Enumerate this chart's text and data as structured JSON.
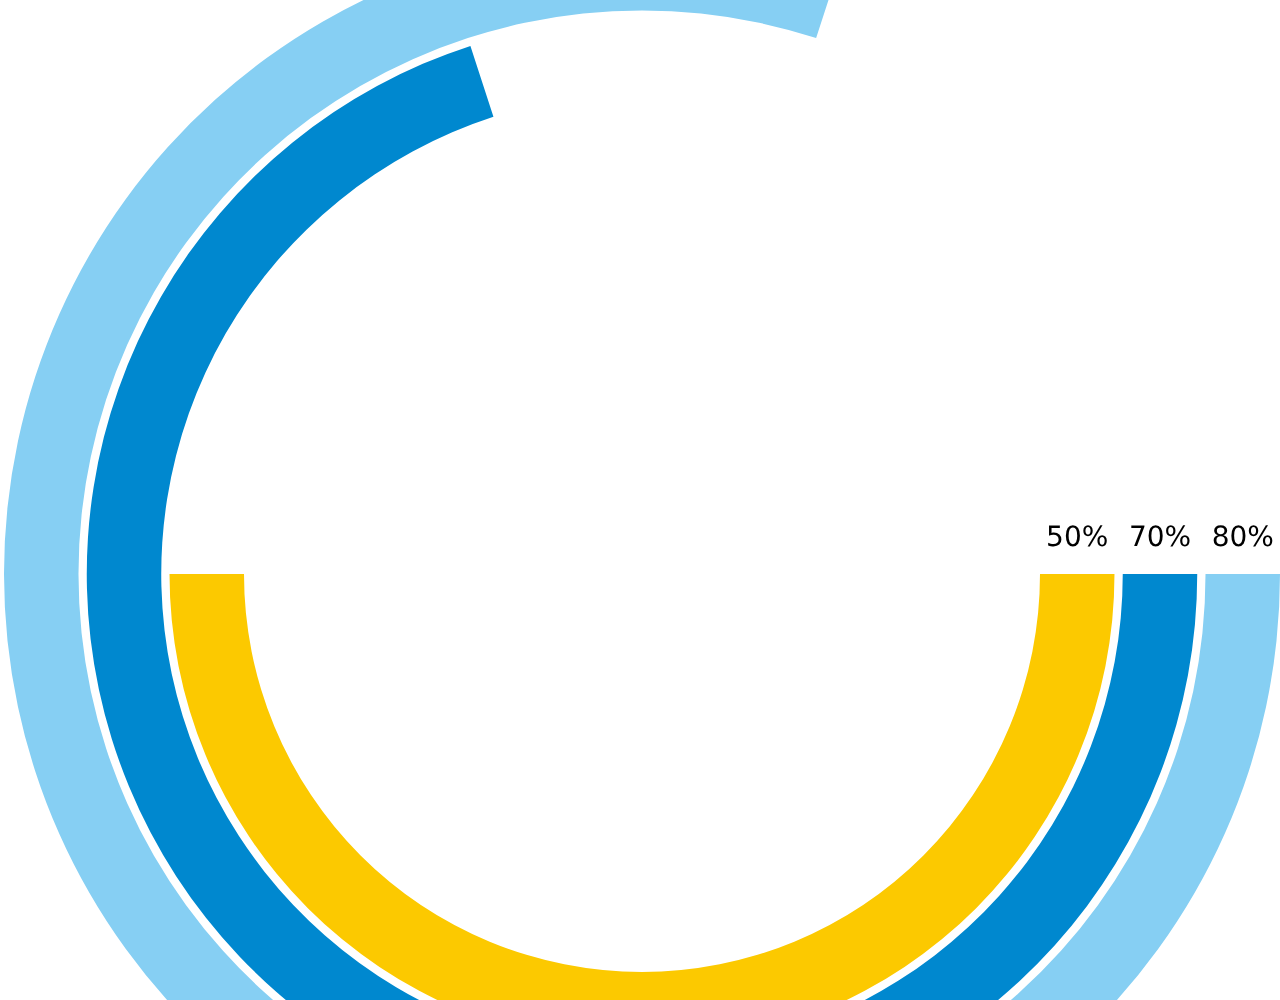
{
  "chart_data": {
    "type": "other",
    "categories": [
      null,
      null,
      null
    ],
    "values": [
      50,
      70,
      80
    ],
    "colors": [
      "#fcc900",
      "#0088cf",
      "#86cff3"
    ],
    "value_labels": [
      "50%",
      "70%",
      "80%"
    ]
  }
}
